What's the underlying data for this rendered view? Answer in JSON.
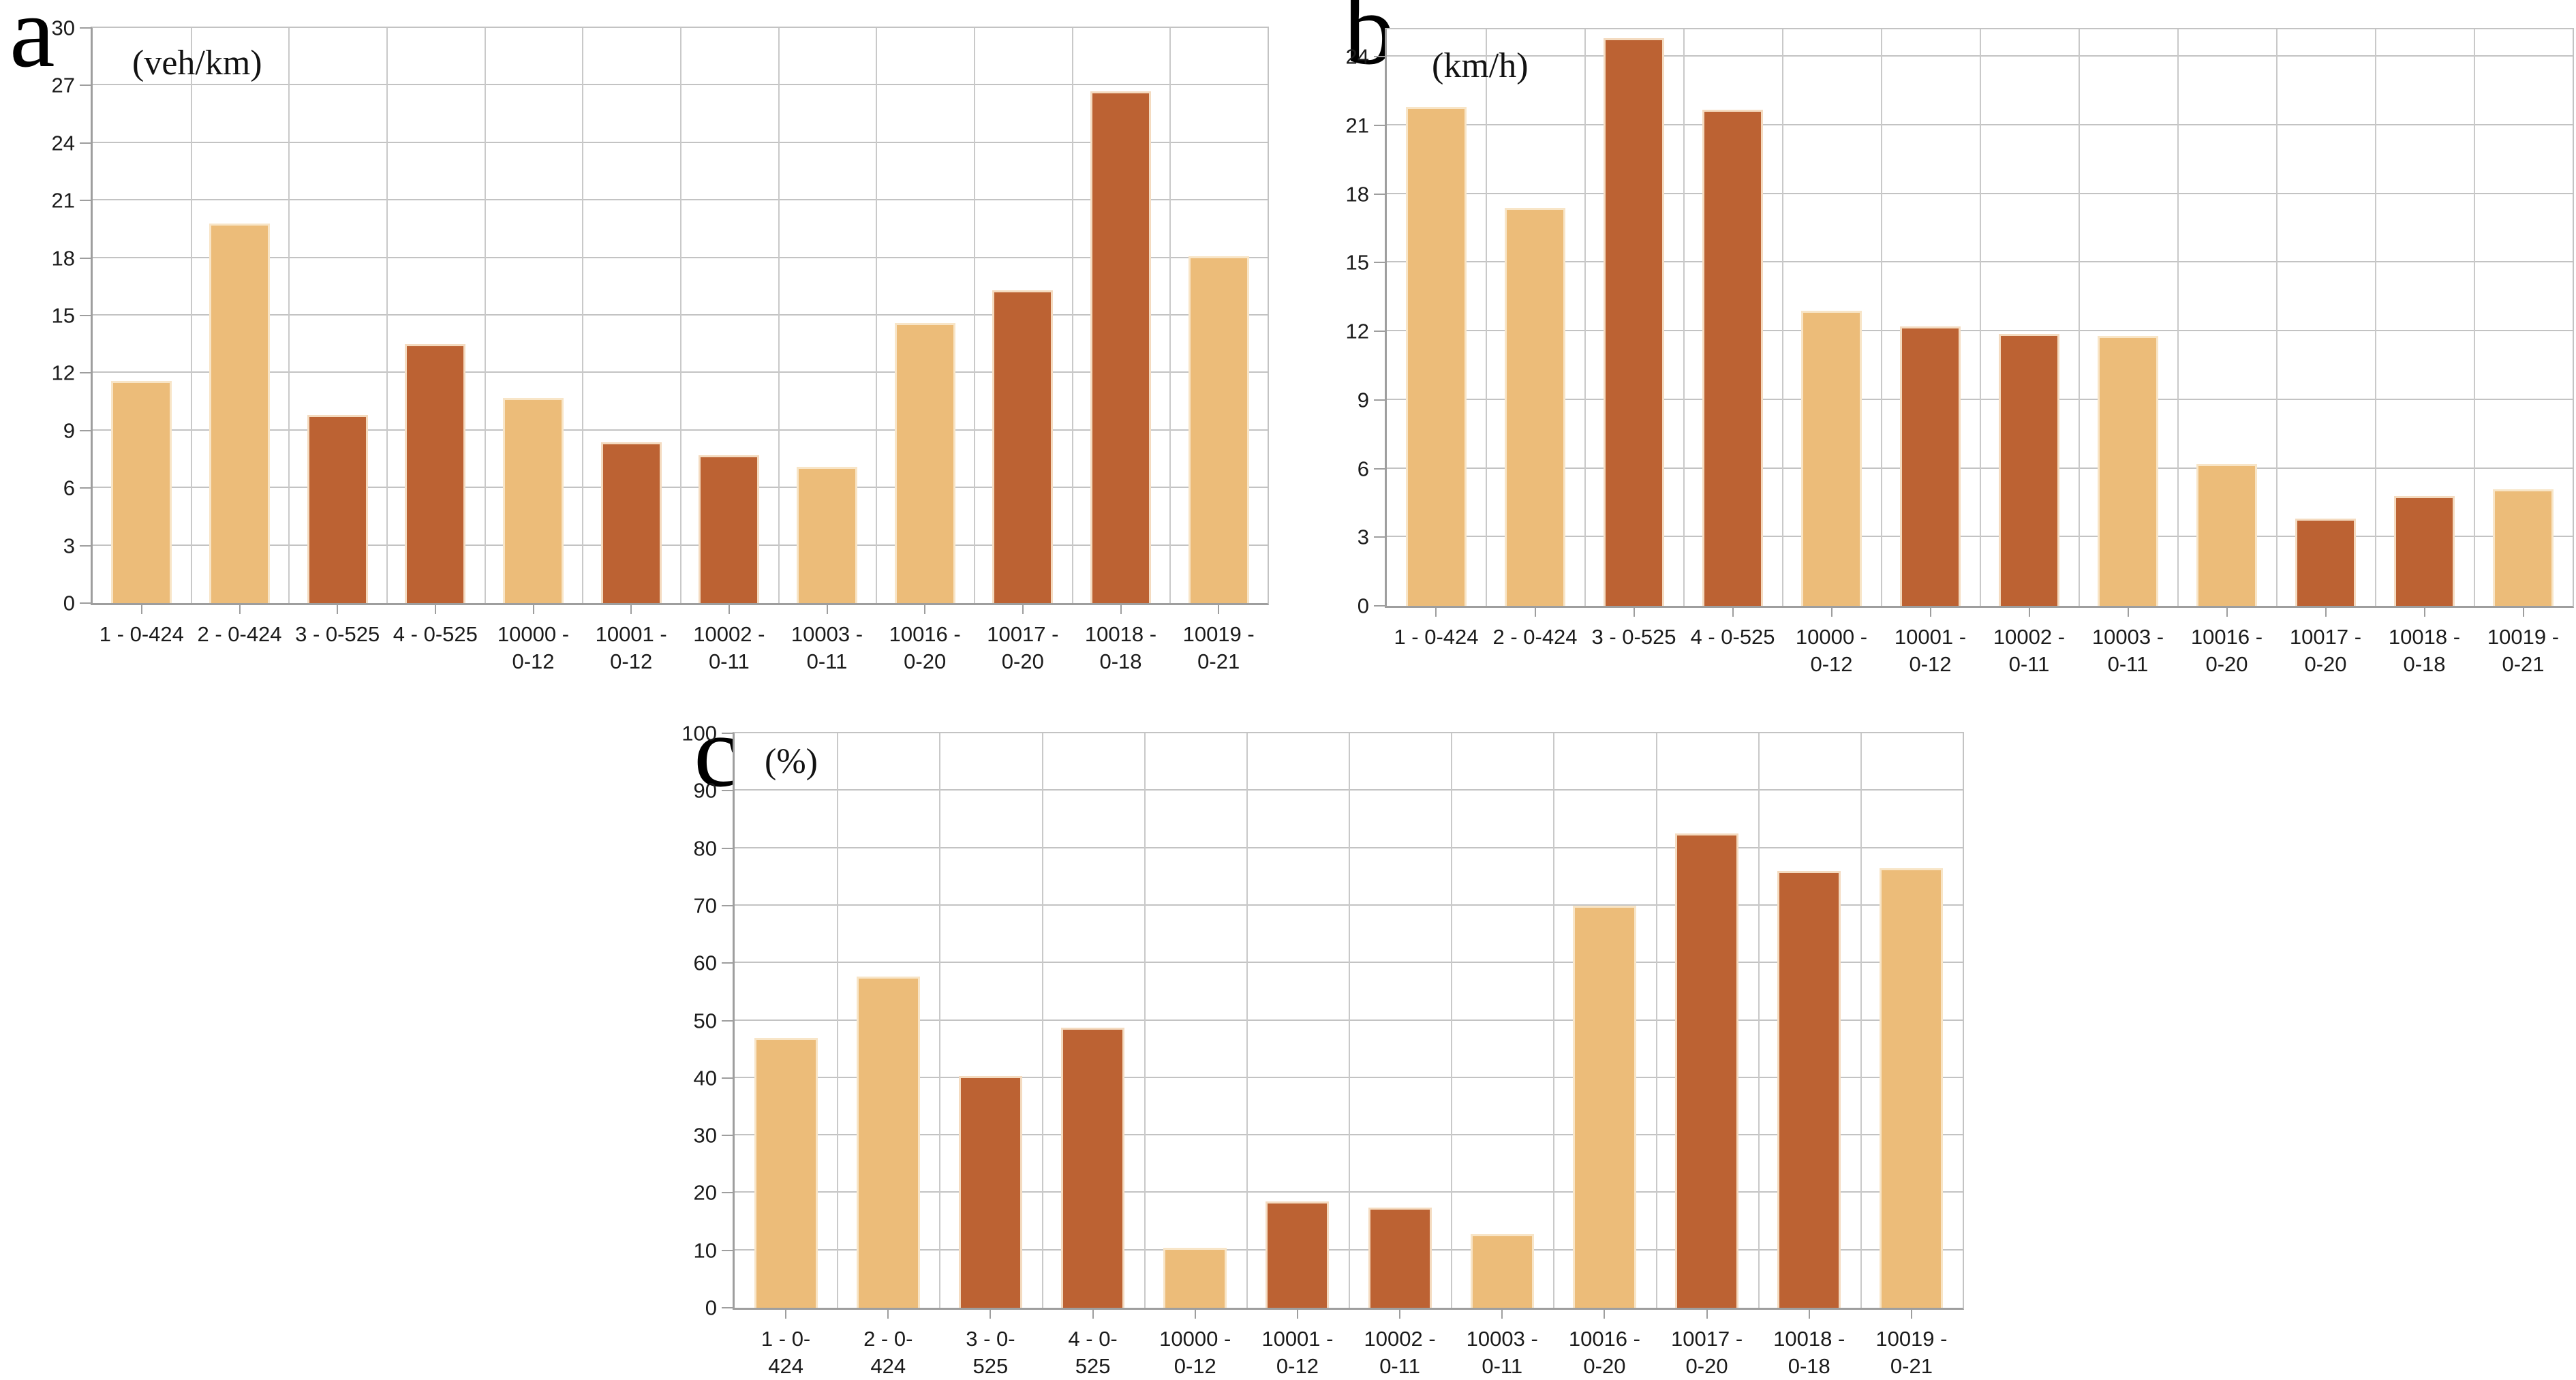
{
  "figure": {
    "description": "Three bar charts comparing 12 road links",
    "panel_letters": [
      "a",
      "b",
      "c"
    ]
  },
  "colors": {
    "bar_light": "#ecbc79",
    "bar_dark": "#bc6233",
    "bar_edge": "#fae9cf",
    "gridline": "#c3c3c3",
    "axis": "#9e9e9e",
    "tick_text": "#1b1b1b"
  },
  "chart_data": [
    {
      "id": "a",
      "panel_letter": "a",
      "type": "bar",
      "title": "(veh/km)",
      "unit": "veh/km",
      "ymax_display": 30,
      "yticks": [
        0,
        3,
        6,
        9,
        12,
        15,
        18,
        21,
        24,
        27,
        30
      ],
      "grid": true,
      "legend": "none",
      "categories": [
        [
          "1 - 0-424"
        ],
        [
          "2 - 0-424"
        ],
        [
          "3 - 0-525"
        ],
        [
          "4 - 0-525"
        ],
        [
          "10000 -",
          "0-12"
        ],
        [
          "10001 -",
          "0-12"
        ],
        [
          "10002 -",
          "0-11"
        ],
        [
          "10003 -",
          "0-11"
        ],
        [
          "10016 -",
          "0-20"
        ],
        [
          "10017 -",
          "0-20"
        ],
        [
          "10018 -",
          "0-18"
        ],
        [
          "10019 -",
          "0-21"
        ]
      ],
      "values": [
        11.6,
        19.8,
        9.8,
        13.5,
        10.7,
        8.4,
        7.7,
        7.1,
        14.6,
        16.3,
        26.7,
        18.1
      ],
      "bar_shades": [
        "light",
        "light",
        "dark",
        "dark",
        "light",
        "dark",
        "dark",
        "light",
        "light",
        "dark",
        "dark",
        "light"
      ]
    },
    {
      "id": "b",
      "panel_letter": "b",
      "type": "bar",
      "title": "(km/h)",
      "unit": "km/h",
      "ymax_display": 25.2,
      "yticks": [
        0,
        3,
        6,
        9,
        12,
        15,
        18,
        21,
        24
      ],
      "grid": true,
      "legend": "none",
      "categories": [
        [
          "1 - 0-424"
        ],
        [
          "2 - 0-424"
        ],
        [
          "3 - 0-525"
        ],
        [
          "4 - 0-525"
        ],
        [
          "10000 -",
          "0-12"
        ],
        [
          "10001 -",
          "0-12"
        ],
        [
          "10002 -",
          "0-11"
        ],
        [
          "10003 -",
          "0-11"
        ],
        [
          "10016 -",
          "0-20"
        ],
        [
          "10017 -",
          "0-20"
        ],
        [
          "10018 -",
          "0-18"
        ],
        [
          "10019 -",
          "0-21"
        ]
      ],
      "values": [
        21.8,
        17.4,
        24.8,
        21.7,
        12.9,
        12.2,
        11.9,
        11.8,
        6.2,
        3.8,
        4.8,
        5.1
      ],
      "bar_shades": [
        "light",
        "light",
        "dark",
        "dark",
        "light",
        "dark",
        "dark",
        "light",
        "light",
        "dark",
        "dark",
        "light"
      ]
    },
    {
      "id": "c",
      "panel_letter": "c",
      "type": "bar",
      "title": "(%)",
      "unit": "%",
      "ymax_display": 100,
      "yticks": [
        0,
        10,
        20,
        30,
        40,
        50,
        60,
        70,
        80,
        90,
        100
      ],
      "grid": true,
      "legend": "none",
      "categories": [
        [
          "1 - 0-",
          "424"
        ],
        [
          "2 - 0-",
          "424"
        ],
        [
          "3 - 0-",
          "525"
        ],
        [
          "4 - 0-",
          "525"
        ],
        [
          "10000 -",
          "0-12"
        ],
        [
          "10001 -",
          "0-12"
        ],
        [
          "10002 -",
          "0-11"
        ],
        [
          "10003 -",
          "0-11"
        ],
        [
          "10016 -",
          "0-20"
        ],
        [
          "10017 -",
          "0-20"
        ],
        [
          "10018 -",
          "0-18"
        ],
        [
          "10019 -",
          "0-21"
        ]
      ],
      "values": [
        47,
        57.6,
        40.3,
        48.7,
        10.5,
        18.5,
        17.4,
        12.8,
        70,
        82.6,
        76,
        76.5
      ],
      "bar_shades": [
        "light",
        "light",
        "dark",
        "dark",
        "light",
        "dark",
        "dark",
        "light",
        "light",
        "dark",
        "dark",
        "light"
      ]
    }
  ]
}
